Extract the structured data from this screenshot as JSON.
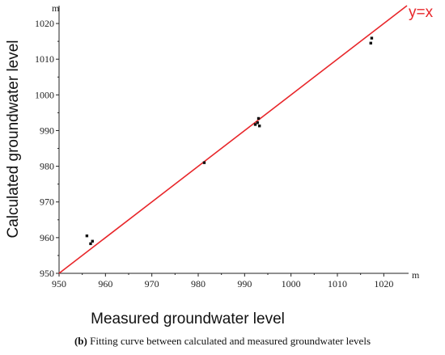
{
  "chart_data": {
    "type": "scatter",
    "xlabel": "Measured groundwater level",
    "ylabel": "Calculated groundwater level",
    "x_unit": "m",
    "y_unit": "m",
    "xlim": [
      950,
      1025
    ],
    "ylim": [
      950,
      1025
    ],
    "x_ticks": [
      950,
      960,
      970,
      980,
      990,
      1000,
      1010,
      1020
    ],
    "y_ticks": [
      950,
      960,
      970,
      980,
      990,
      1000,
      1010,
      1020
    ],
    "grid": false,
    "fit_line": {
      "label": "y=x",
      "color": "#e8262a",
      "slope": 1,
      "intercept": 0
    },
    "points": [
      {
        "x": 956.0,
        "y": 960.5
      },
      {
        "x": 956.8,
        "y": 958.3
      },
      {
        "x": 957.2,
        "y": 959.0
      },
      {
        "x": 981.3,
        "y": 981.0
      },
      {
        "x": 992.3,
        "y": 991.7
      },
      {
        "x": 992.8,
        "y": 992.2
      },
      {
        "x": 993.0,
        "y": 993.4
      },
      {
        "x": 993.2,
        "y": 991.3
      },
      {
        "x": 1017.2,
        "y": 1014.5
      },
      {
        "x": 1017.4,
        "y": 1015.9
      }
    ],
    "point_color": "#111111"
  },
  "caption": {
    "panel": "(b)",
    "text": "Fitting curve between calculated and measured groundwater levels"
  }
}
